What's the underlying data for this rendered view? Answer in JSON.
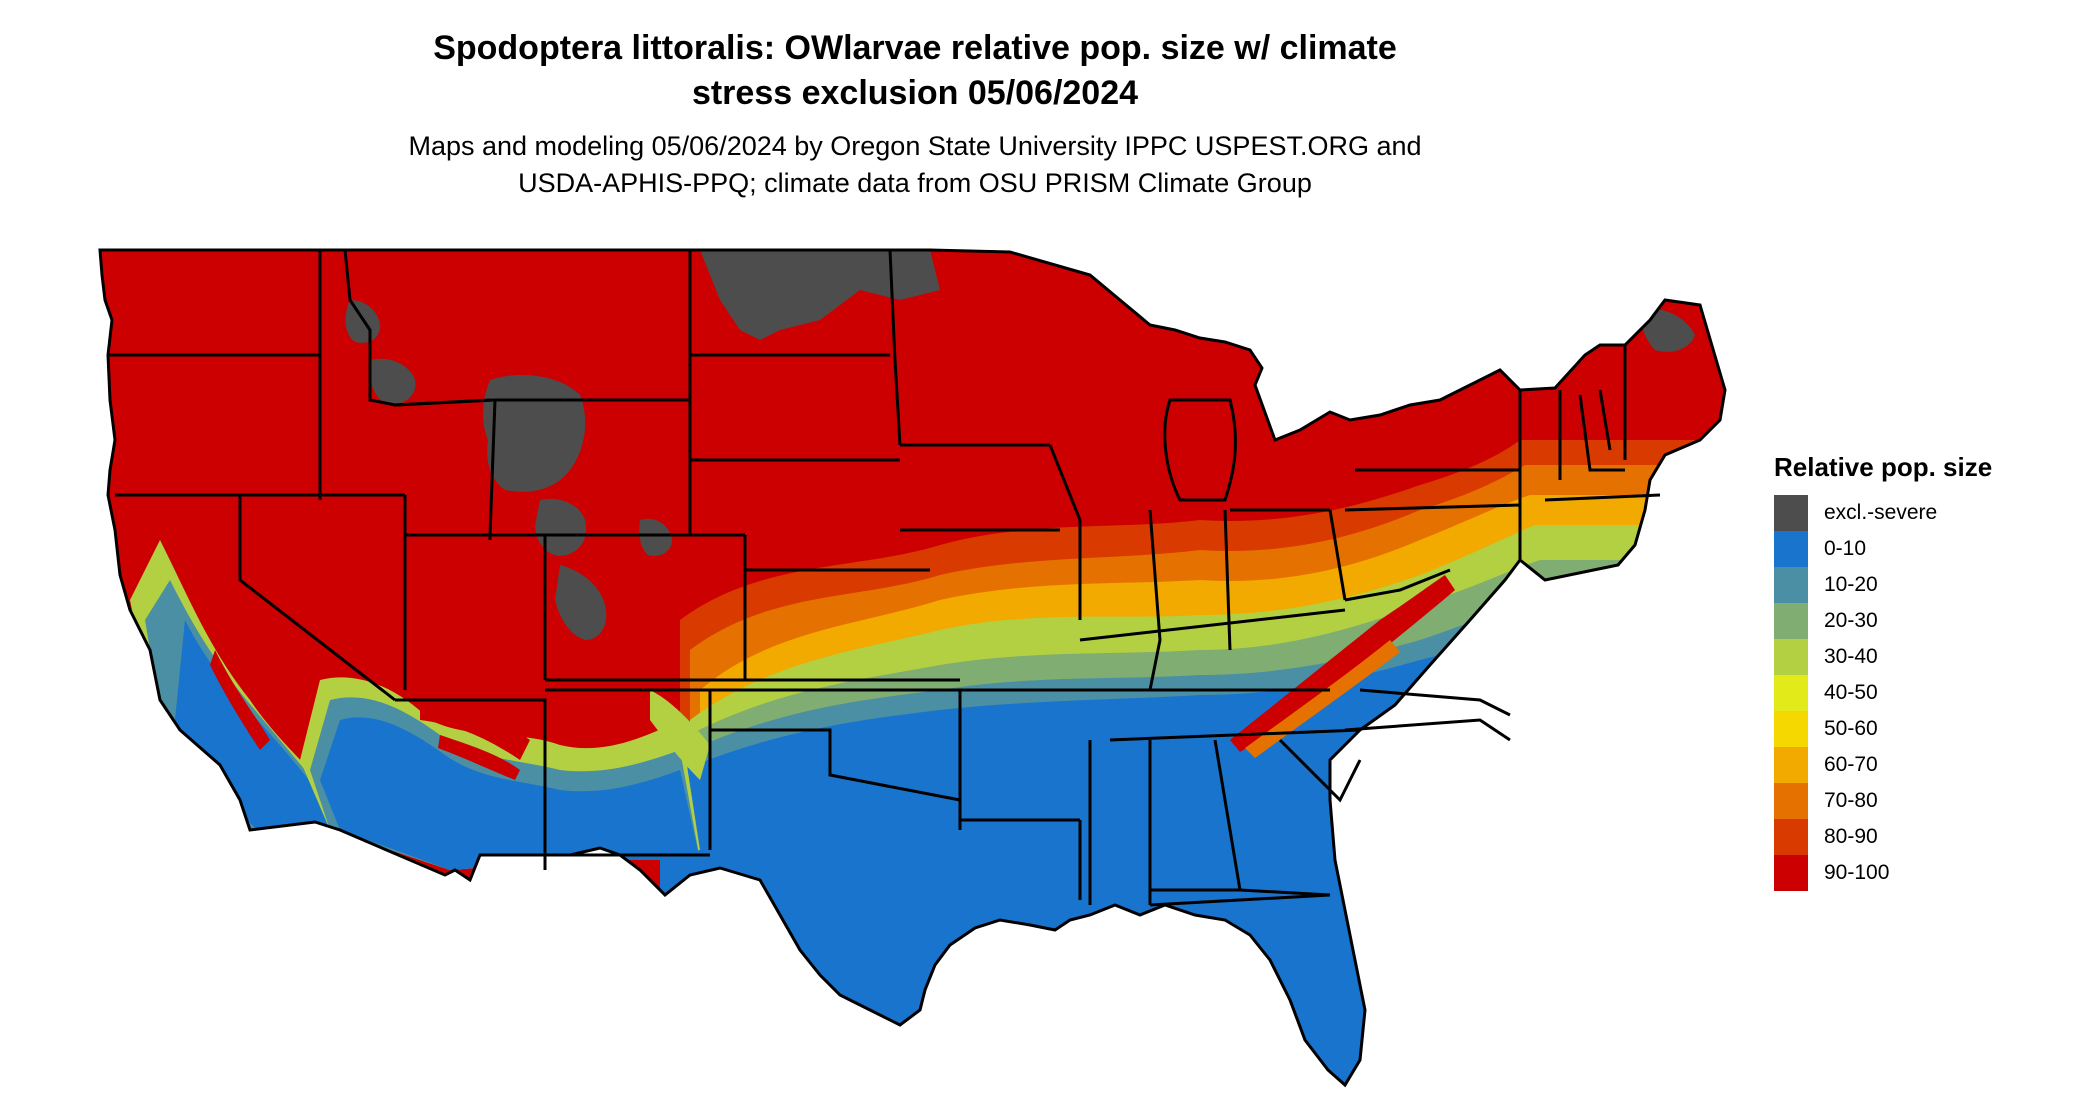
{
  "header": {
    "title_line1": "Spodoptera littoralis: OWlarvae relative pop. size w/ climate",
    "title_line2": "stress exclusion 05/06/2024",
    "subtitle_line1": "Maps and modeling 05/06/2024 by Oregon State University IPPC USPEST.ORG and",
    "subtitle_line2": "USDA-APHIS-PPQ; climate data from OSU PRISM Climate Group"
  },
  "legend": {
    "title": "Relative pop. size",
    "items": [
      {
        "label": "excl.-severe",
        "color": "#4d4d4d"
      },
      {
        "label": "0-10",
        "color": "#1874cd"
      },
      {
        "label": "10-20",
        "color": "#4a8fa3"
      },
      {
        "label": "20-30",
        "color": "#7fad72"
      },
      {
        "label": "30-40",
        "color": "#b3d042"
      },
      {
        "label": "40-50",
        "color": "#e2ea1a"
      },
      {
        "label": "50-60",
        "color": "#f5d800"
      },
      {
        "label": "60-70",
        "color": "#f2a900"
      },
      {
        "label": "70-80",
        "color": "#e57200"
      },
      {
        "label": "80-90",
        "color": "#d93a00"
      },
      {
        "label": "90-100",
        "color": "#cc0000"
      }
    ]
  },
  "map": {
    "region": "Contiguous United States",
    "borders_color": "#000000"
  }
}
